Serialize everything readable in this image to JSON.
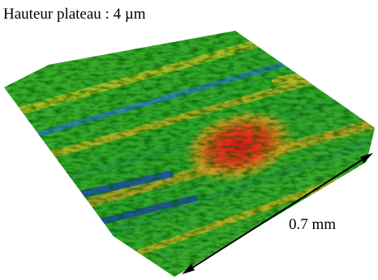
{
  "title": "Hauteur plateau : 4 µm",
  "scale_label": "0.7 mm"
}
